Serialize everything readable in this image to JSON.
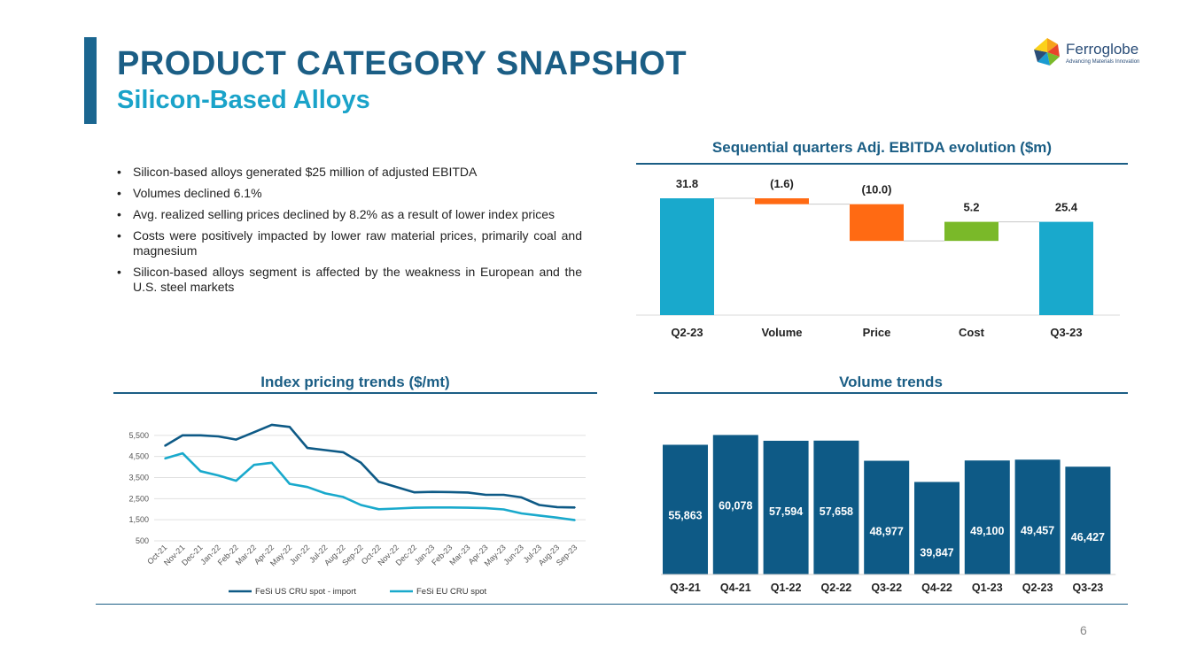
{
  "header": {
    "title": "PRODUCT CATEGORY SNAPSHOT",
    "subtitle": "Silicon-Based Alloys"
  },
  "logo": {
    "name": "Ferroglobe",
    "tagline": "Advancing Materials Innovation"
  },
  "bullets": [
    "Silicon-based alloys generated $25 million of adjusted EBITDA",
    "Volumes declined 6.1%",
    "Avg. realized selling prices declined by 8.2% as a result of lower index prices",
    "Costs were positively impacted by lower raw material prices, primarily coal and magnesium",
    "Silicon-based alloys segment is affected by the weakness in European and the U.S. steel markets"
  ],
  "page_number": "6",
  "colors": {
    "title": "#1b5e85",
    "subtitle": "#1aa3c9",
    "dark_blue": "#0e5a86",
    "light_blue": "#19a9cc",
    "orange": "#ff6a13",
    "green": "#7ab929"
  },
  "chart_data": [
    {
      "id": "ebitda_bridge",
      "type": "waterfall",
      "title": "Sequential quarters Adj. EBITDA evolution ($m)",
      "categories": [
        "Q2-23",
        "Volume",
        "Price",
        "Cost",
        "Q3-23"
      ],
      "values": [
        31.8,
        -1.6,
        -10.0,
        5.2,
        25.4
      ],
      "value_labels": [
        "31.8",
        "(1.6)",
        "(10.0)",
        "5.2",
        "25.4"
      ],
      "kinds": [
        "total",
        "delta",
        "delta",
        "delta",
        "total"
      ],
      "colors": [
        "#19a9cc",
        "#ff6a13",
        "#ff6a13",
        "#7ab929",
        "#19a9cc"
      ]
    },
    {
      "id": "index_pricing",
      "type": "line",
      "title": "Index pricing trends ($/mt)",
      "x": [
        "Oct-21",
        "Nov-21",
        "Dec-21",
        "Jan-22",
        "Feb-22",
        "Mar-22",
        "Apr-22",
        "May-22",
        "Jun-22",
        "Jul-22",
        "Aug-22",
        "Sep-22",
        "Oct-22",
        "Nov-22",
        "Dec-22",
        "Jan-23",
        "Feb-23",
        "Mar-23",
        "Apr-23",
        "May-23",
        "Jun-23",
        "Jul-23",
        "Aug-23",
        "Sep-23"
      ],
      "ylim": [
        500,
        6500
      ],
      "yticks": [
        500,
        1500,
        2500,
        3500,
        4500,
        5500
      ],
      "ytick_labels": [
        "500",
        "1,500",
        "2,500",
        "3,500",
        "4,500",
        "5,500"
      ],
      "series": [
        {
          "name": "FeSi US CRU spot - import",
          "color": "#0e5a86",
          "values": [
            5000,
            5500,
            5500,
            5450,
            5300,
            5650,
            6000,
            5900,
            4900,
            4800,
            4700,
            4200,
            3300,
            3050,
            2800,
            2820,
            2810,
            2790,
            2680,
            2680,
            2560,
            2200,
            2100,
            2080
          ]
        },
        {
          "name": "FeSi EU CRU spot",
          "color": "#19a9cc",
          "values": [
            4400,
            4650,
            3800,
            3600,
            3350,
            4100,
            4200,
            3200,
            3050,
            2750,
            2580,
            2200,
            2000,
            2030,
            2070,
            2080,
            2080,
            2070,
            2050,
            1990,
            1800,
            1700,
            1600,
            1480
          ]
        }
      ],
      "legend_position": "bottom"
    },
    {
      "id": "volume_trends",
      "type": "bar",
      "title": "Volume trends",
      "categories": [
        "Q3-21",
        "Q4-21",
        "Q1-22",
        "Q2-22",
        "Q3-22",
        "Q4-22",
        "Q1-23",
        "Q2-23",
        "Q3-23"
      ],
      "values": [
        55863,
        60078,
        57594,
        57658,
        48977,
        39847,
        49100,
        49457,
        46427
      ],
      "value_labels": [
        "55,863",
        "60,078",
        "57,594",
        "57,658",
        "48,977",
        "39,847",
        "49,100",
        "49,457",
        "46,427"
      ],
      "ylim": [
        0,
        61000
      ],
      "color": "#0e5a86"
    }
  ]
}
